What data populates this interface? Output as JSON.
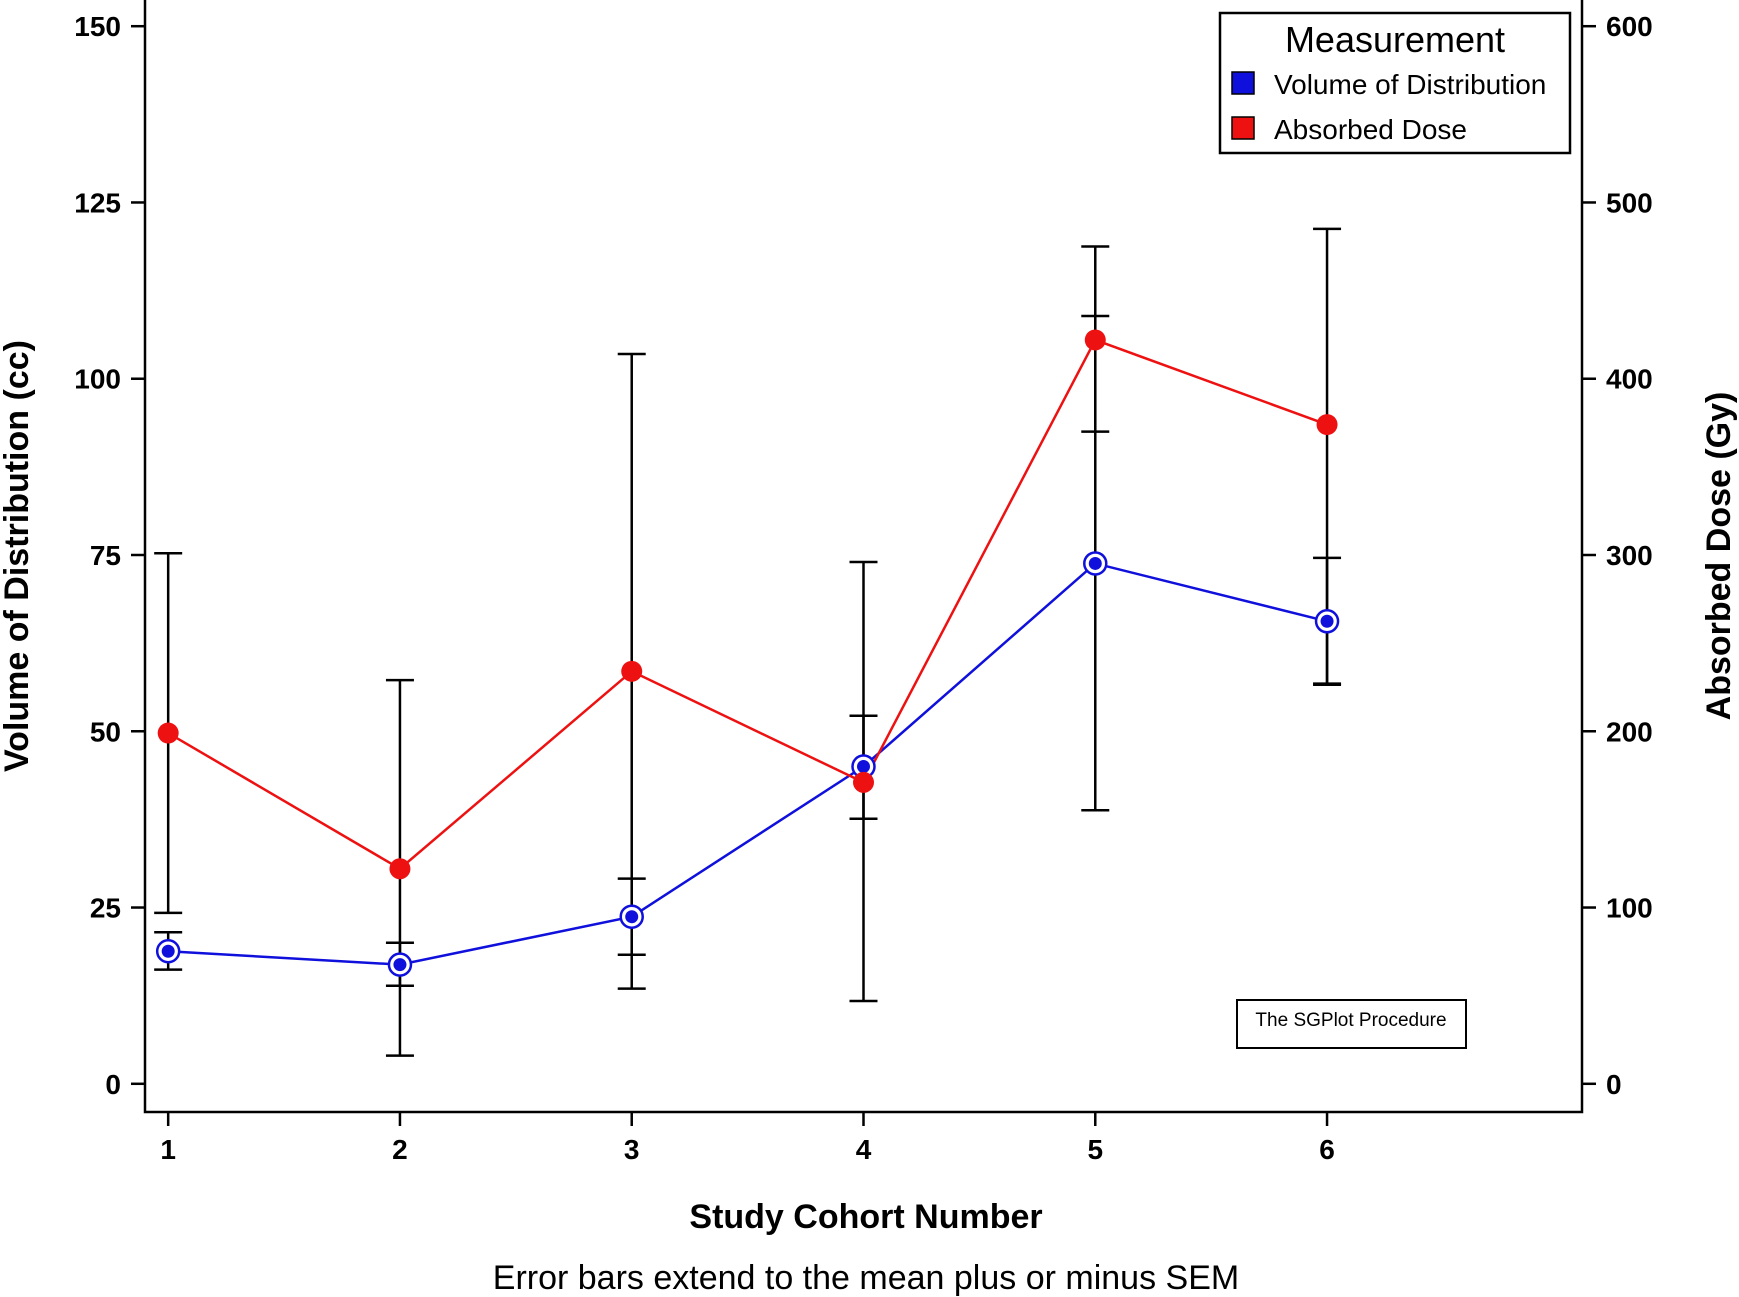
{
  "chart_data": {
    "type": "line",
    "x": [
      1,
      2,
      3,
      4,
      5,
      6
    ],
    "xlabel": "Study Cohort Number",
    "xlim": [
      0.9,
      7.1
    ],
    "xticks": [
      1,
      2,
      3,
      4,
      5,
      6
    ],
    "y_left": {
      "label": "Volume of Distribution (cc)",
      "lim": [
        -4,
        154
      ],
      "ticks": [
        0,
        25,
        50,
        75,
        100,
        125,
        150
      ]
    },
    "y_right": {
      "label": "Absorbed Dose (Gy)",
      "lim": [
        -16,
        616
      ],
      "ticks": [
        0,
        100,
        200,
        300,
        400,
        500,
        600
      ]
    },
    "series": [
      {
        "name": "Volume of Distribution",
        "axis": "left",
        "color": "#1010dd",
        "marker": "ring-circle",
        "y": [
          18.8,
          16.9,
          23.7,
          45.0,
          73.8,
          65.6
        ],
        "lower": [
          16.2,
          13.9,
          18.3,
          37.6,
          38.8,
          56.6
        ],
        "upper": [
          21.5,
          20.0,
          29.1,
          52.2,
          108.9,
          74.6
        ]
      },
      {
        "name": "Absorbed Dose",
        "axis": "right",
        "color": "#ee1111",
        "marker": "filled-circle",
        "y": [
          199,
          122,
          234,
          171,
          422,
          374
        ],
        "lower": [
          97,
          16,
          54,
          47,
          370,
          227
        ],
        "upper": [
          301,
          229,
          414,
          296,
          475,
          485
        ]
      }
    ],
    "legend": {
      "title": "Measurement",
      "position": "top-right"
    },
    "footnote": "Error bars extend to the mean plus or minus SEM",
    "procedure_label": "The SGPlot Procedure",
    "grid": false
  }
}
